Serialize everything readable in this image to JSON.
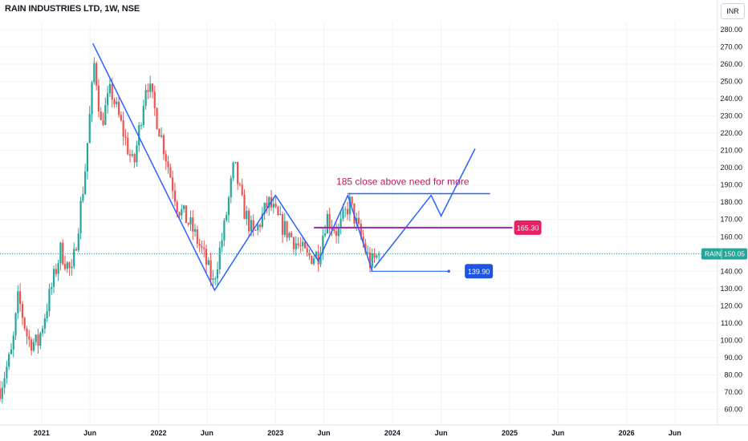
{
  "header": {
    "symbol_title": "RAIN INDUSTRIES LTD, 1W, NSE",
    "currency_label": "INR"
  },
  "colors": {
    "up": "#26a69a",
    "down": "#ef5350",
    "trendline": "#2962ff",
    "resistance_line": "#9c27b0",
    "annotation_text": "#c2185b",
    "resistance_badge": "#e91e63",
    "target_badge": "#1e53e5",
    "last_price_badge": "#26a69a"
  },
  "chart_data": {
    "type": "candlestick",
    "symbol": "RAIN",
    "interval": "1W",
    "exchange": "NSE",
    "currency": "INR",
    "ylim": [
      50,
      285
    ],
    "yticks": [
      60,
      70,
      80,
      90,
      100,
      110,
      120,
      130,
      140,
      150,
      160,
      170,
      180,
      190,
      200,
      210,
      220,
      230,
      240,
      250,
      260,
      270,
      280
    ],
    "ytick_labels": [
      "60.00",
      "70.00",
      "80.00",
      "90.00",
      "100.00",
      "110.00",
      "120.00",
      "130.00",
      "140.00",
      "150.00",
      "160.00",
      "170.00",
      "180.00",
      "190.00",
      "200.00",
      "210.00",
      "220.00",
      "230.00",
      "240.00",
      "250.00",
      "260.00",
      "270.00",
      "280.00"
    ],
    "xlim": [
      "2020-08-24",
      "2026-10-12"
    ],
    "xticks": [
      {
        "date": "2021-01-01",
        "label": "2021"
      },
      {
        "date": "2021-06-01",
        "label": "Jun"
      },
      {
        "date": "2022-01-01",
        "label": "2022"
      },
      {
        "date": "2022-06-01",
        "label": "Jun"
      },
      {
        "date": "2023-01-01",
        "label": "2023"
      },
      {
        "date": "2023-06-01",
        "label": "Jun"
      },
      {
        "date": "2024-01-01",
        "label": "2024"
      },
      {
        "date": "2024-06-01",
        "label": "Jun"
      },
      {
        "date": "2025-01-01",
        "label": "2025"
      },
      {
        "date": "2025-06-01",
        "label": "Jun"
      },
      {
        "date": "2026-01-01",
        "label": "2026"
      },
      {
        "date": "2026-06-01",
        "label": "Jun"
      }
    ],
    "price_path": [
      {
        "date": "2020-08-24",
        "price": 72
      },
      {
        "date": "2020-10-01",
        "price": 94
      },
      {
        "date": "2020-10-20",
        "price": 125
      },
      {
        "date": "2020-11-20",
        "price": 100
      },
      {
        "date": "2020-12-20",
        "price": 98
      },
      {
        "date": "2021-03-01",
        "price": 152
      },
      {
        "date": "2021-04-05",
        "price": 138
      },
      {
        "date": "2021-05-15",
        "price": 195
      },
      {
        "date": "2021-06-15",
        "price": 262
      },
      {
        "date": "2021-07-05",
        "price": 225
      },
      {
        "date": "2021-08-05",
        "price": 245
      },
      {
        "date": "2021-10-15",
        "price": 200
      },
      {
        "date": "2021-11-25",
        "price": 252
      },
      {
        "date": "2022-01-20",
        "price": 210
      },
      {
        "date": "2022-03-01",
        "price": 178
      },
      {
        "date": "2022-04-15",
        "price": 165
      },
      {
        "date": "2022-05-20",
        "price": 150
      },
      {
        "date": "2022-06-20",
        "price": 133
      },
      {
        "date": "2022-07-25",
        "price": 165
      },
      {
        "date": "2022-08-25",
        "price": 202
      },
      {
        "date": "2022-09-20",
        "price": 178
      },
      {
        "date": "2022-10-25",
        "price": 160
      },
      {
        "date": "2022-12-10",
        "price": 180
      },
      {
        "date": "2023-01-15",
        "price": 168
      },
      {
        "date": "2023-02-20",
        "price": 160
      },
      {
        "date": "2023-04-10",
        "price": 148
      },
      {
        "date": "2023-05-15",
        "price": 150
      },
      {
        "date": "2023-06-10",
        "price": 172
      },
      {
        "date": "2023-07-15",
        "price": 162
      },
      {
        "date": "2023-08-20",
        "price": 180
      },
      {
        "date": "2023-09-20",
        "price": 162
      },
      {
        "date": "2023-10-25",
        "price": 144
      },
      {
        "date": "2023-11-20",
        "price": 150
      }
    ],
    "last_price": {
      "label": "RAIN",
      "value": "150.05"
    },
    "drawings": {
      "zigzag": [
        {
          "date": "2021-06-10",
          "price": 272
        },
        {
          "date": "2022-06-25",
          "price": 129
        },
        {
          "date": "2023-01-01",
          "price": 184
        },
        {
          "date": "2023-05-15",
          "price": 146
        },
        {
          "date": "2023-08-15",
          "price": 184
        },
        {
          "date": "2023-10-30",
          "price": 140
        }
      ],
      "projection": [
        {
          "date": "2023-11-05",
          "price": 142
        },
        {
          "date": "2024-05-01",
          "price": 184
        },
        {
          "date": "2024-06-01",
          "price": 172
        },
        {
          "date": "2024-09-15",
          "price": 211
        }
      ],
      "resistance_185": {
        "start": "2023-08-15",
        "end": "2024-11-01",
        "price": 185
      },
      "resistance_165": {
        "start": "2023-05-01",
        "end": "2025-01-10",
        "price": 165.3,
        "label": "165.30"
      },
      "target": {
        "start": "2023-10-25",
        "end": "2024-06-25",
        "price": 140,
        "label": "139.90"
      },
      "annotation": {
        "text": "185 close above need for more",
        "date": "2023-07-10",
        "price": 190
      }
    }
  }
}
